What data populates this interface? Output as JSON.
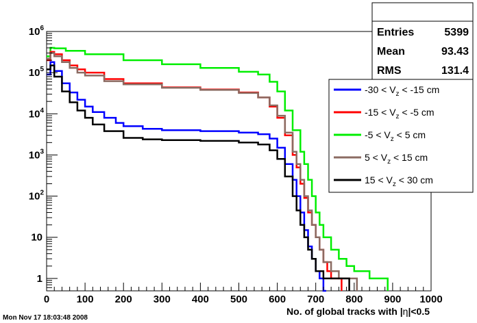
{
  "footer": {
    "timestamp": "Mon Nov 17 18:03:48 2008"
  },
  "stats": {
    "rows": [
      {
        "label": "Entries",
        "value": "5399"
      },
      {
        "label": "Mean",
        "value": "93.43"
      },
      {
        "label": "RMS",
        "value": "131.4"
      }
    ]
  },
  "chart_data": {
    "type": "line",
    "xlabel_parts": [
      "No. of global tracks with |",
      "η",
      "|<0.5"
    ],
    "ylabel": "",
    "xlim": [
      0,
      1000
    ],
    "ylim": [
      0.5,
      1000000
    ],
    "yscale": "log",
    "x_ticks": [
      "0",
      "100",
      "200",
      "300",
      "400",
      "500",
      "600",
      "700",
      "800",
      "900",
      "1000"
    ],
    "y_ticks": [
      {
        "base": "1",
        "exp": ""
      },
      {
        "base": "10",
        "exp": ""
      },
      {
        "base": "10",
        "exp": "2"
      },
      {
        "base": "10",
        "exp": "3"
      },
      {
        "base": "10",
        "exp": "4"
      },
      {
        "base": "10",
        "exp": "5"
      },
      {
        "base": "10",
        "exp": "6"
      }
    ],
    "legend_placement": "right",
    "series": [
      {
        "name": "-30 < V_z < -15 cm",
        "legend": [
          "-30 < V",
          "z",
          " < -15 cm"
        ],
        "color": "#0000ff",
        "x": [
          0,
          10,
          20,
          40,
          60,
          80,
          100,
          120,
          150,
          180,
          200,
          250,
          300,
          400,
          500,
          550,
          580,
          600,
          620,
          640,
          650,
          660,
          670,
          680,
          690,
          700,
          710,
          720
        ],
        "y": [
          90000,
          180000,
          110000,
          55000,
          33000,
          22000,
          15000,
          11000,
          8000,
          6000,
          5000,
          4300,
          4000,
          3800,
          3500,
          3200,
          2500,
          1500,
          600,
          250,
          100,
          40,
          15,
          6,
          3,
          1.5,
          1,
          0.5
        ]
      },
      {
        "name": "-15 < V_z < -5 cm",
        "legend": [
          "-15 < V",
          "z",
          " < -5 cm"
        ],
        "color": "#ff0000",
        "x": [
          0,
          10,
          20,
          40,
          60,
          80,
          100,
          150,
          200,
          300,
          400,
          500,
          550,
          580,
          600,
          620,
          640,
          650,
          660,
          670,
          680,
          690,
          700,
          710,
          720,
          730,
          740,
          760
        ],
        "y": [
          200000,
          320000,
          280000,
          200000,
          150000,
          120000,
          100000,
          70000,
          55000,
          44000,
          39000,
          33000,
          25000,
          15000,
          8000,
          3000,
          1000,
          500,
          200,
          90,
          40,
          20,
          10,
          5,
          2.5,
          1.5,
          1,
          1
        ]
      },
      {
        "name": "-5 < V_z < 5 cm",
        "legend": [
          "-5 < V",
          "z",
          " < 5 cm"
        ],
        "color": "#00ee00",
        "x": [
          0,
          10,
          20,
          50,
          100,
          200,
          300,
          400,
          500,
          550,
          580,
          600,
          620,
          640,
          660,
          670,
          680,
          690,
          700,
          710,
          720,
          740,
          760,
          780,
          800,
          840,
          880
        ],
        "y": [
          250000,
          400000,
          390000,
          340000,
          280000,
          200000,
          160000,
          130000,
          105000,
          90000,
          60000,
          35000,
          12000,
          4000,
          1200,
          600,
          250,
          100,
          40,
          20,
          10,
          5,
          3,
          2,
          1.5,
          1,
          1
        ]
      },
      {
        "name": "5 < V_z < 15 cm",
        "legend": [
          "5 < V",
          "z",
          " < 15 cm"
        ],
        "color": "#8b6b62",
        "x": [
          0,
          10,
          20,
          40,
          60,
          80,
          100,
          150,
          200,
          300,
          400,
          500,
          550,
          580,
          600,
          620,
          640,
          650,
          660,
          670,
          680,
          690,
          700,
          710,
          720,
          740,
          760,
          780,
          800
        ],
        "y": [
          220000,
          300000,
          250000,
          180000,
          130000,
          100000,
          85000,
          62000,
          52000,
          43000,
          38000,
          32000,
          25000,
          16000,
          9000,
          3500,
          1200,
          600,
          250,
          100,
          45,
          20,
          10,
          5,
          2.5,
          1.5,
          1,
          1,
          1
        ]
      },
      {
        "name": "15 < V_z < 30 cm",
        "legend": [
          "15 < V",
          "z",
          " < 30 cm"
        ],
        "color": "#000000",
        "x": [
          0,
          10,
          20,
          40,
          60,
          80,
          100,
          120,
          150,
          200,
          250,
          300,
          400,
          500,
          550,
          580,
          600,
          620,
          640,
          650,
          660,
          670,
          680,
          690,
          700,
          720,
          740,
          760,
          780
        ],
        "y": [
          120000,
          150000,
          80000,
          35000,
          19000,
          12000,
          8000,
          5500,
          3800,
          2600,
          2400,
          2300,
          2200,
          2000,
          1800,
          1300,
          800,
          300,
          100,
          45,
          20,
          10,
          5,
          3,
          1.5,
          1,
          1,
          1,
          1
        ]
      }
    ]
  }
}
